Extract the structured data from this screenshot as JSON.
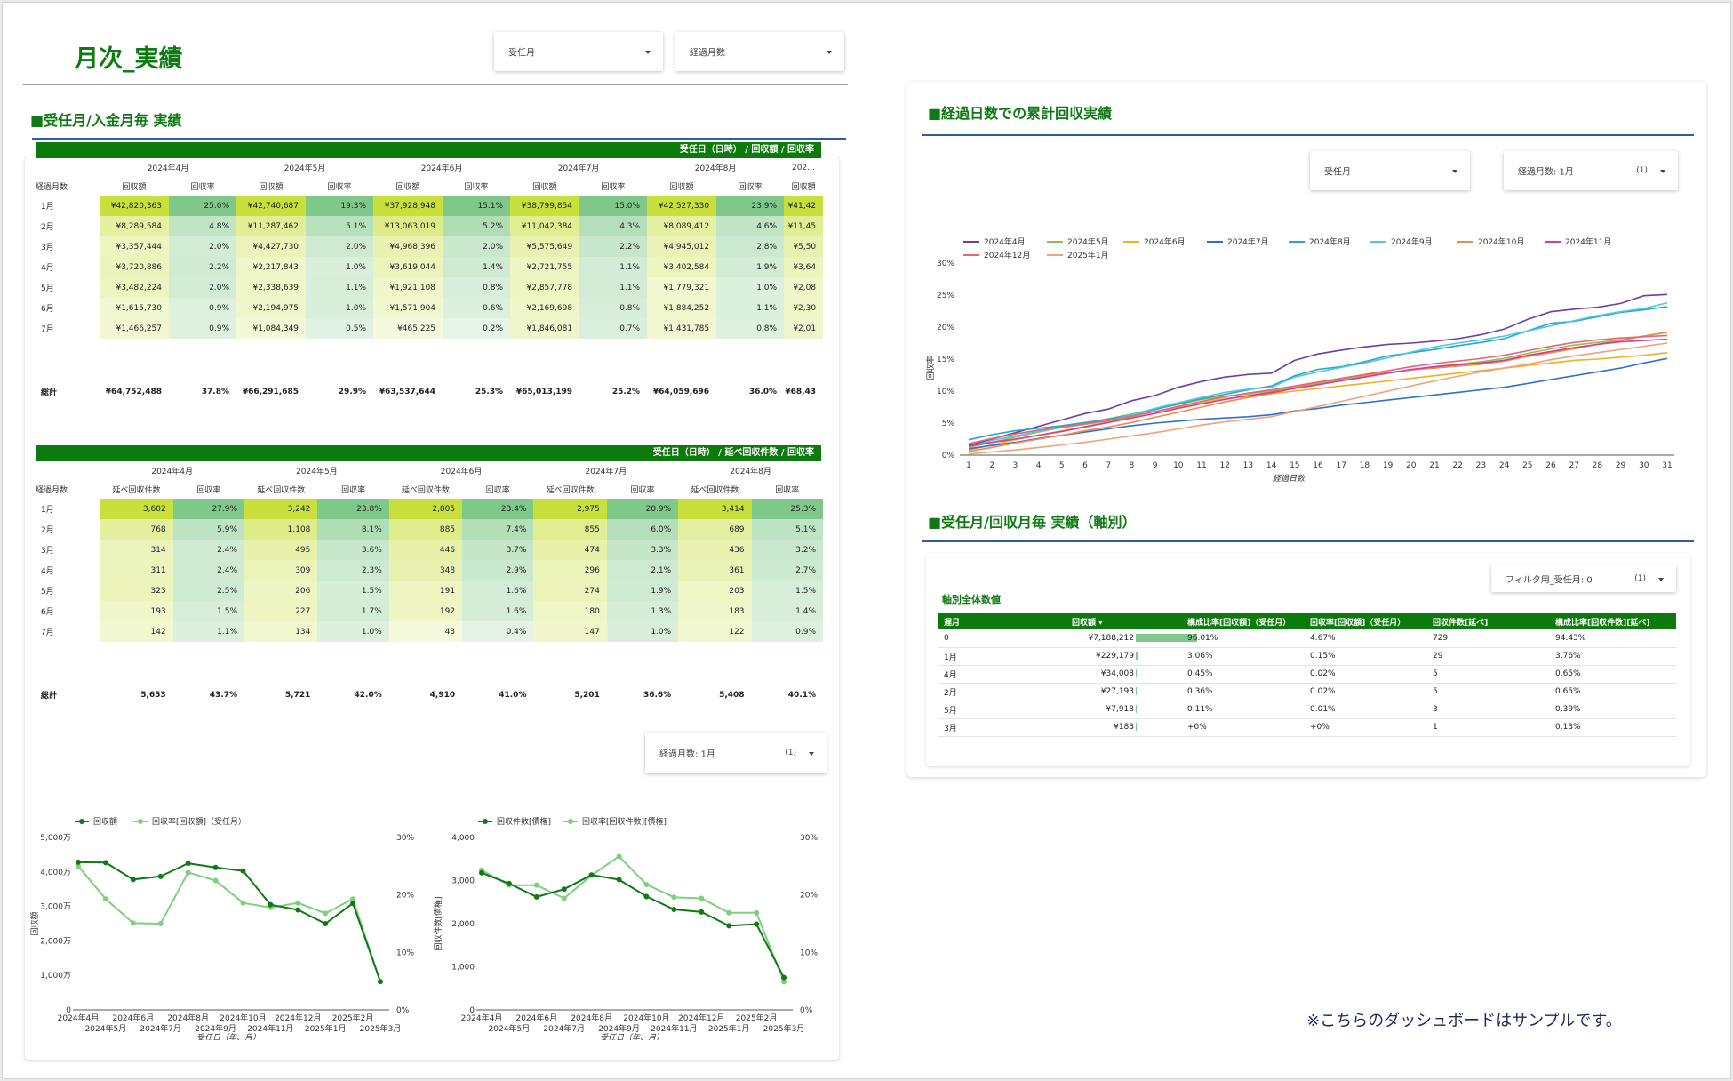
{
  "page_title": "月次_実績",
  "filters": {
    "top1": "受任月",
    "top2": "経過月数",
    "months_filter": "経過月数: 1月",
    "months_filter_count": "(1)",
    "right_accept": "受任月",
    "right_months": "経過月数: 1月",
    "right_months_count": "(1)",
    "right_filter": "フィルタ用_受任月: 0",
    "right_filter_count": "(1)"
  },
  "section1": {
    "title": "■受任月/入金月毎 実績",
    "table1": {
      "bar_title": "受任日（日時） / 回収額 / 回収率",
      "row_header": "経過月数",
      "months": [
        "2024年4月",
        "2024年5月",
        "2024年6月",
        "2024年7月",
        "2024年8月",
        "202…"
      ],
      "col_a": "回収額",
      "col_b": "回収率",
      "rows": [
        {
          "label": "1月",
          "cells": [
            "¥42,820,363",
            "25.0%",
            "¥42,740,687",
            "19.3%",
            "¥37,928,948",
            "15.1%",
            "¥38,799,854",
            "15.0%",
            "¥42,527,330",
            "23.9%",
            "¥41,42"
          ]
        },
        {
          "label": "2月",
          "cells": [
            "¥8,289,584",
            "4.8%",
            "¥11,287,462",
            "5.1%",
            "¥13,063,019",
            "5.2%",
            "¥11,042,384",
            "4.3%",
            "¥8,089,412",
            "4.6%",
            "¥11,45"
          ]
        },
        {
          "label": "3月",
          "cells": [
            "¥3,357,444",
            "2.0%",
            "¥4,427,730",
            "2.0%",
            "¥4,968,396",
            "2.0%",
            "¥5,575,649",
            "2.2%",
            "¥4,945,012",
            "2.8%",
            "¥5,50"
          ]
        },
        {
          "label": "4月",
          "cells": [
            "¥3,720,886",
            "2.2%",
            "¥2,217,843",
            "1.0%",
            "¥3,619,044",
            "1.4%",
            "¥2,721,755",
            "1.1%",
            "¥3,402,584",
            "1.9%",
            "¥3,64"
          ]
        },
        {
          "label": "5月",
          "cells": [
            "¥3,482,224",
            "2.0%",
            "¥2,338,639",
            "1.1%",
            "¥1,921,108",
            "0.8%",
            "¥2,857,778",
            "1.1%",
            "¥1,779,321",
            "1.0%",
            "¥2,08"
          ]
        },
        {
          "label": "6月",
          "cells": [
            "¥1,615,730",
            "0.9%",
            "¥2,194,975",
            "1.0%",
            "¥1,571,904",
            "0.6%",
            "¥2,169,698",
            "0.8%",
            "¥1,884,252",
            "1.1%",
            "¥2,30"
          ]
        },
        {
          "label": "7月",
          "cells": [
            "¥1,466,257",
            "0.9%",
            "¥1,084,349",
            "0.5%",
            "¥465,225",
            "0.2%",
            "¥1,846,081",
            "0.7%",
            "¥1,431,785",
            "0.8%",
            "¥2,01"
          ]
        }
      ],
      "total": {
        "label": "総計",
        "cells": [
          "¥64,752,488",
          "37.8%",
          "¥66,291,685",
          "29.9%",
          "¥63,537,644",
          "25.3%",
          "¥65,013,199",
          "25.2%",
          "¥64,059,696",
          "36.0%",
          "¥68,43"
        ]
      }
    },
    "table2": {
      "bar_title": "受任日（日時） / 延べ回収件数 / 回収率",
      "row_header": "経過月数",
      "months": [
        "2024年4月",
        "2024年5月",
        "2024年6月",
        "2024年7月",
        "2024年8月"
      ],
      "col_a": "延べ回収件数",
      "col_b": "回収率",
      "rows": [
        {
          "label": "1月",
          "cells": [
            "3,602",
            "27.9%",
            "3,242",
            "23.8%",
            "2,805",
            "23.4%",
            "2,975",
            "20.9%",
            "3,414",
            "25.3%"
          ]
        },
        {
          "label": "2月",
          "cells": [
            "768",
            "5.9%",
            "1,108",
            "8.1%",
            "885",
            "7.4%",
            "855",
            "6.0%",
            "689",
            "5.1%"
          ]
        },
        {
          "label": "3月",
          "cells": [
            "314",
            "2.4%",
            "495",
            "3.6%",
            "446",
            "3.7%",
            "474",
            "3.3%",
            "436",
            "3.2%"
          ]
        },
        {
          "label": "4月",
          "cells": [
            "311",
            "2.4%",
            "309",
            "2.3%",
            "348",
            "2.9%",
            "296",
            "2.1%",
            "361",
            "2.7%"
          ]
        },
        {
          "label": "5月",
          "cells": [
            "323",
            "2.5%",
            "206",
            "1.5%",
            "191",
            "1.6%",
            "274",
            "1.9%",
            "203",
            "1.5%"
          ]
        },
        {
          "label": "6月",
          "cells": [
            "193",
            "1.5%",
            "227",
            "1.7%",
            "192",
            "1.6%",
            "180",
            "1.3%",
            "183",
            "1.4%"
          ]
        },
        {
          "label": "7月",
          "cells": [
            "142",
            "1.1%",
            "134",
            "1.0%",
            "43",
            "0.4%",
            "147",
            "1.0%",
            "122",
            "0.9%"
          ]
        }
      ],
      "total": {
        "label": "総計",
        "cells": [
          "5,653",
          "43.7%",
          "5,721",
          "42.0%",
          "4,910",
          "41.0%",
          "5,201",
          "36.6%",
          "5,408",
          "40.1%"
        ]
      }
    }
  },
  "section2": {
    "title": "■経過日数での累計回収実績"
  },
  "section3": {
    "title": "■受任月/回収月毎 実績（軸別）",
    "subtitle": "軸別全体数値",
    "headers": [
      "遅月",
      "回収額 ▾",
      "構成比率[回収額]（受任月）",
      "回収率[回収額]（受任月）",
      "回収件数[延べ]",
      "構成比率[回収件数][延べ]"
    ],
    "rows": [
      {
        "c": [
          "0",
          "¥7,188,212",
          "96.01%",
          "4.67%",
          "729",
          "94.43%"
        ],
        "share": 0.9601
      },
      {
        "c": [
          "1月",
          "¥229,179",
          "3.06%",
          "0.15%",
          "29",
          "3.76%"
        ],
        "share": 0.0306
      },
      {
        "c": [
          "4月",
          "¥34,008",
          "0.45%",
          "0.02%",
          "5",
          "0.65%"
        ],
        "share": 0.0045
      },
      {
        "c": [
          "2月",
          "¥27,193",
          "0.36%",
          "0.02%",
          "5",
          "0.65%"
        ],
        "share": 0.0036
      },
      {
        "c": [
          "5月",
          "¥7,918",
          "0.11%",
          "0.01%",
          "3",
          "0.39%"
        ],
        "share": 0.0011
      },
      {
        "c": [
          "3月",
          "¥183",
          "+0%",
          "+0%",
          "1",
          "0.13%"
        ],
        "share": 0.0001
      }
    ]
  },
  "footer_note": "※こちらのダッシュボードはサンプルです。",
  "chart_data": [
    {
      "id": "cumulative",
      "type": "line",
      "title": "",
      "xlabel": "経過日数",
      "ylabel": "回収率",
      "x": [
        1,
        2,
        3,
        4,
        5,
        6,
        7,
        8,
        9,
        10,
        11,
        12,
        13,
        14,
        15,
        16,
        17,
        18,
        19,
        20,
        21,
        22,
        23,
        24,
        25,
        26,
        27,
        28,
        29,
        30,
        31
      ],
      "ylim": [
        0,
        30
      ],
      "yticks": [
        "0%",
        "5%",
        "10%",
        "15%",
        "20%",
        "25%",
        "30%"
      ],
      "series": [
        {
          "name": "2024年4月",
          "color": "#6a3fa8",
          "values": [
            1.5,
            2.5,
            3.5,
            4.5,
            5.5,
            6.5,
            7.2,
            8.5,
            9.3,
            10.6,
            11.5,
            12.2,
            12.6,
            12.8,
            14.8,
            15.8,
            16.4,
            16.9,
            17.3,
            17.5,
            17.8,
            18.2,
            18.8,
            19.7,
            21.2,
            22.4,
            22.8,
            23.1,
            23.7,
            24.9,
            25.1
          ]
        },
        {
          "name": "2024年5月",
          "color": "#8bc34a",
          "values": [
            1.2,
            2.0,
            2.8,
            3.6,
            4.3,
            5.0,
            5.7,
            6.4,
            7.2,
            7.9,
            8.7,
            9.2,
            9.6,
            10.0,
            10.6,
            11.2,
            11.8,
            12.3,
            12.8,
            13.3,
            13.8,
            14.2,
            14.6,
            15.1,
            15.9,
            16.6,
            17.2,
            17.6,
            18.0,
            18.6,
            19.2
          ]
        },
        {
          "name": "2024年6月",
          "color": "#f2b01e",
          "values": [
            0.8,
            1.6,
            2.4,
            3.1,
            3.8,
            4.5,
            5.2,
            6.0,
            6.8,
            7.5,
            8.2,
            8.8,
            9.2,
            9.6,
            10.0,
            10.4,
            10.8,
            11.2,
            11.6,
            12.0,
            12.4,
            12.8,
            13.2,
            13.6,
            14.0,
            14.4,
            14.8,
            15.0,
            15.3,
            15.6,
            16.0
          ]
        },
        {
          "name": "2024年7月",
          "color": "#2f6fd0",
          "values": [
            1.0,
            1.5,
            2.0,
            2.6,
            3.1,
            3.6,
            4.1,
            4.6,
            5.0,
            5.3,
            5.6,
            5.8,
            6.0,
            6.3,
            6.9,
            7.3,
            7.8,
            8.2,
            8.6,
            9.0,
            9.4,
            9.8,
            10.2,
            10.6,
            11.2,
            11.8,
            12.4,
            13.0,
            13.6,
            14.4,
            15.1
          ]
        },
        {
          "name": "2024年8月",
          "color": "#26a7c9",
          "values": [
            2.4,
            3.2,
            3.8,
            4.2,
            4.6,
            5.1,
            5.6,
            6.3,
            7.1,
            8.0,
            8.8,
            9.5,
            10.2,
            10.8,
            12.4,
            13.4,
            13.8,
            14.6,
            15.5,
            16.0,
            16.5,
            17.1,
            17.6,
            18.2,
            19.4,
            20.6,
            20.9,
            21.6,
            22.3,
            22.7,
            23.2
          ]
        },
        {
          "name": "2024年9月",
          "color": "#4fc7e0",
          "values": [
            1.3,
            2.3,
            3.0,
            3.7,
            4.3,
            4.8,
            5.4,
            6.3,
            7.3,
            8.2,
            9.0,
            9.8,
            10.3,
            10.6,
            12.2,
            13.0,
            13.7,
            14.4,
            15.2,
            16.1,
            16.9,
            17.5,
            18.0,
            18.6,
            19.4,
            20.2,
            21.0,
            21.8,
            22.4,
            22.9,
            23.8
          ]
        },
        {
          "name": "2024年10月",
          "color": "#f08a4b",
          "values": [
            0.6,
            1.2,
            1.9,
            2.5,
            3.1,
            3.8,
            4.4,
            5.1,
            5.9,
            6.7,
            7.5,
            8.3,
            9.0,
            9.6,
            10.5,
            11.4,
            12.0,
            12.5,
            12.9,
            13.3,
            13.6,
            13.9,
            14.2,
            14.7,
            15.4,
            16.0,
            16.6,
            17.3,
            17.9,
            18.6,
            19.2
          ]
        },
        {
          "name": "2024年11月",
          "color": "#d63c9a",
          "values": [
            1.4,
            2.0,
            2.5,
            3.1,
            3.7,
            4.4,
            5.1,
            5.8,
            6.5,
            7.3,
            8.0,
            8.7,
            9.3,
            9.8,
            10.4,
            11.0,
            11.6,
            12.2,
            12.8,
            13.4,
            13.8,
            14.1,
            14.4,
            14.8,
            15.6,
            16.2,
            16.8,
            17.3,
            17.7,
            17.9,
            18.1
          ]
        },
        {
          "name": "2024年12月",
          "color": "#e8647a",
          "values": [
            1.8,
            2.6,
            3.3,
            3.9,
            4.4,
            4.9,
            5.4,
            6.1,
            6.8,
            7.6,
            8.4,
            9.1,
            9.7,
            10.2,
            10.8,
            11.4,
            12.0,
            12.6,
            13.2,
            13.8,
            14.3,
            14.7,
            15.1,
            15.6,
            16.3,
            17.0,
            17.6,
            18.0,
            18.3,
            18.5,
            18.7
          ]
        },
        {
          "name": "2025年1月",
          "color": "#f0a27a",
          "values": [
            0.2,
            0.5,
            0.8,
            1.2,
            1.6,
            2.0,
            2.5,
            3.0,
            3.5,
            4.1,
            4.7,
            5.2,
            5.6,
            6.0,
            6.8,
            7.6,
            8.4,
            9.2,
            10.0,
            10.8,
            11.6,
            12.3,
            13.0,
            13.6,
            14.2,
            14.9,
            15.5,
            16.0,
            16.5,
            17.0,
            17.5
          ]
        }
      ]
    },
    {
      "id": "amount",
      "type": "line",
      "xlabel": "受任日（年、月）",
      "ylabel": "回収額",
      "categories": [
        "2024年4月",
        "2024年5月",
        "2024年6月",
        "2024年7月",
        "2024年8月",
        "2024年9月",
        "2024年10月",
        "2024年11月",
        "2024年12月",
        "2025年1月",
        "2025年2月",
        "2025年3月"
      ],
      "ylim_left": [
        0,
        5000
      ],
      "yticks_left": [
        "0",
        "1,000万",
        "2,000万",
        "3,000万",
        "4,000万",
        "5,000万"
      ],
      "ylim_right": [
        0,
        30
      ],
      "yticks_right": [
        "0%",
        "10%",
        "20%",
        "30%"
      ],
      "series": [
        {
          "name": "回収額",
          "axis": "left",
          "color": "#0f7a14",
          "values": [
            4280,
            4270,
            3780,
            3870,
            4250,
            4130,
            4030,
            3050,
            2900,
            2500,
            3090,
            820
          ]
        },
        {
          "name": "回収率[回収額]（受任月）",
          "axis": "right",
          "color": "#7fcf7f",
          "values": [
            25.0,
            19.3,
            15.1,
            15.0,
            23.9,
            22.5,
            18.6,
            17.8,
            18.6,
            16.8,
            19.3,
            4.9
          ]
        }
      ]
    },
    {
      "id": "count",
      "type": "line",
      "xlabel": "受任日（年、月）",
      "ylabel": "回収件数[債権]",
      "categories": [
        "2024年4月",
        "2024年5月",
        "2024年6月",
        "2024年7月",
        "2024年8月",
        "2024年9月",
        "2024年10月",
        "2024年11月",
        "2024年12月",
        "2025年1月",
        "2025年2月",
        "2025年3月"
      ],
      "ylim_left": [
        0,
        4000
      ],
      "yticks_left": [
        "0",
        "1,000",
        "2,000",
        "3,000",
        "4,000"
      ],
      "ylim_right": [
        0,
        30
      ],
      "yticks_right": [
        "0%",
        "10%",
        "20%",
        "30%"
      ],
      "series": [
        {
          "name": "回収件数[債権]",
          "axis": "left",
          "color": "#0f7a14",
          "values": [
            3180,
            2930,
            2620,
            2800,
            3130,
            3020,
            2630,
            2330,
            2270,
            1950,
            1990,
            750
          ]
        },
        {
          "name": "回収率[回収件数][債権]",
          "axis": "right",
          "color": "#7fcf7f",
          "values": [
            24.3,
            21.7,
            21.7,
            19.4,
            23.4,
            26.7,
            21.8,
            19.6,
            19.4,
            16.9,
            16.9,
            4.9
          ]
        }
      ]
    }
  ]
}
